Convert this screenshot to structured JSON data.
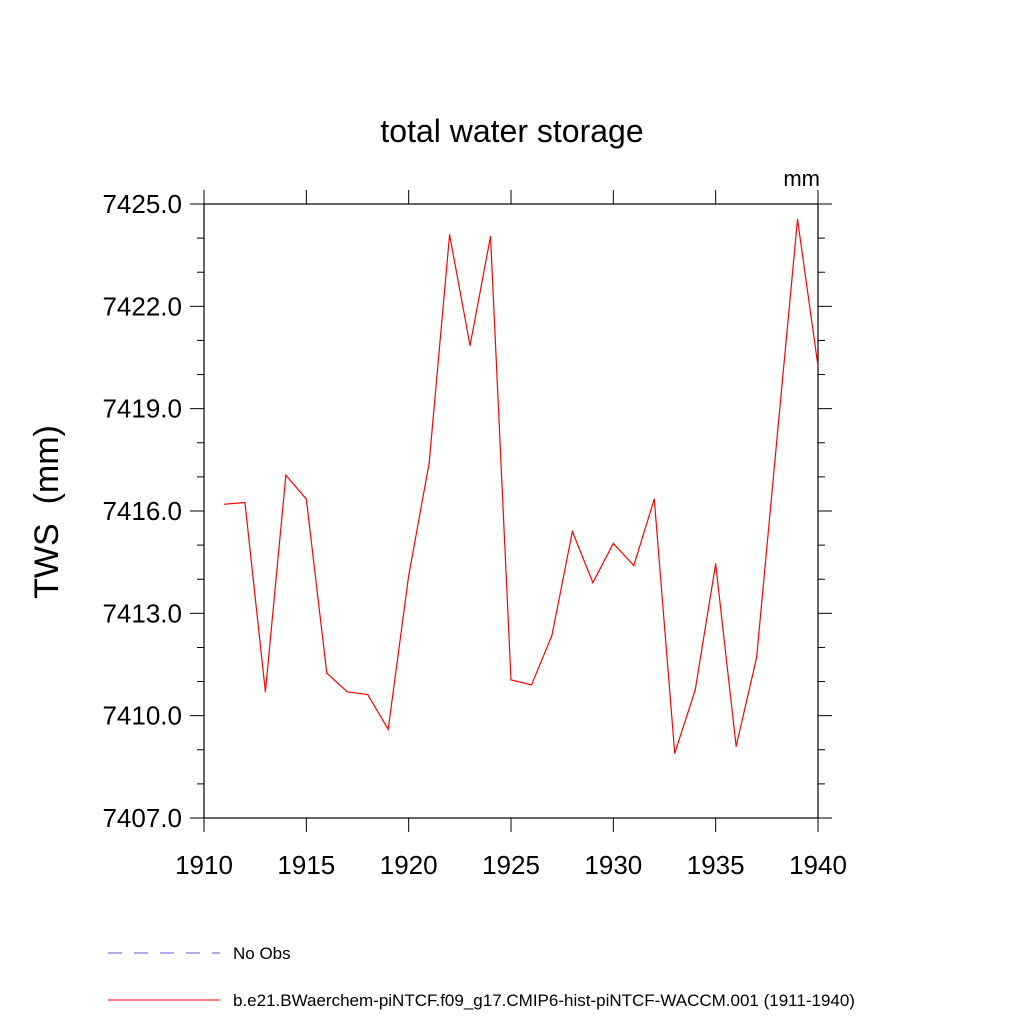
{
  "chart_data": {
    "type": "line",
    "title": "total water storage",
    "units_label": "mm",
    "ylabel": "TWS  (mm)",
    "xlabel": "",
    "xlim": [
      1910,
      1940
    ],
    "ylim": [
      7407.0,
      7425.0
    ],
    "x_ticks": [
      "1910",
      "1915",
      "1920",
      "1925",
      "1930",
      "1935",
      "1940"
    ],
    "y_ticks": [
      "7407.0",
      "7410.0",
      "7413.0",
      "7416.0",
      "7419.0",
      "7422.0",
      "7425.0"
    ],
    "grid": false,
    "legend_position": "bottom-left",
    "series": [
      {
        "name": "No Obs",
        "color": "#6a5acd",
        "style": "dashed",
        "x": [],
        "y": []
      },
      {
        "name": "b.e21.BWaerchem-piNTCF.f09_g17.CMIP6-hist-piNTCF-WACCM.001 (1911-1940)",
        "color": "#ff0000",
        "style": "solid",
        "x": [
          1911,
          1912,
          1913,
          1914,
          1915,
          1916,
          1917,
          1918,
          1919,
          1920,
          1921,
          1922,
          1923,
          1924,
          1925,
          1926,
          1927,
          1928,
          1929,
          1930,
          1931,
          1932,
          1933,
          1934,
          1935,
          1936,
          1937,
          1938,
          1939,
          1940
        ],
        "y": [
          7416.2,
          7416.25,
          7410.7,
          7417.05,
          7416.35,
          7411.25,
          7410.7,
          7410.62,
          7409.6,
          7414.1,
          7417.4,
          7424.1,
          7420.85,
          7424.05,
          7411.05,
          7410.9,
          7412.35,
          7415.4,
          7413.9,
          7415.05,
          7414.4,
          7416.35,
          7408.9,
          7410.75,
          7414.45,
          7409.1,
          7411.7,
          7418.15,
          7424.55,
          7420.25
        ]
      }
    ]
  }
}
